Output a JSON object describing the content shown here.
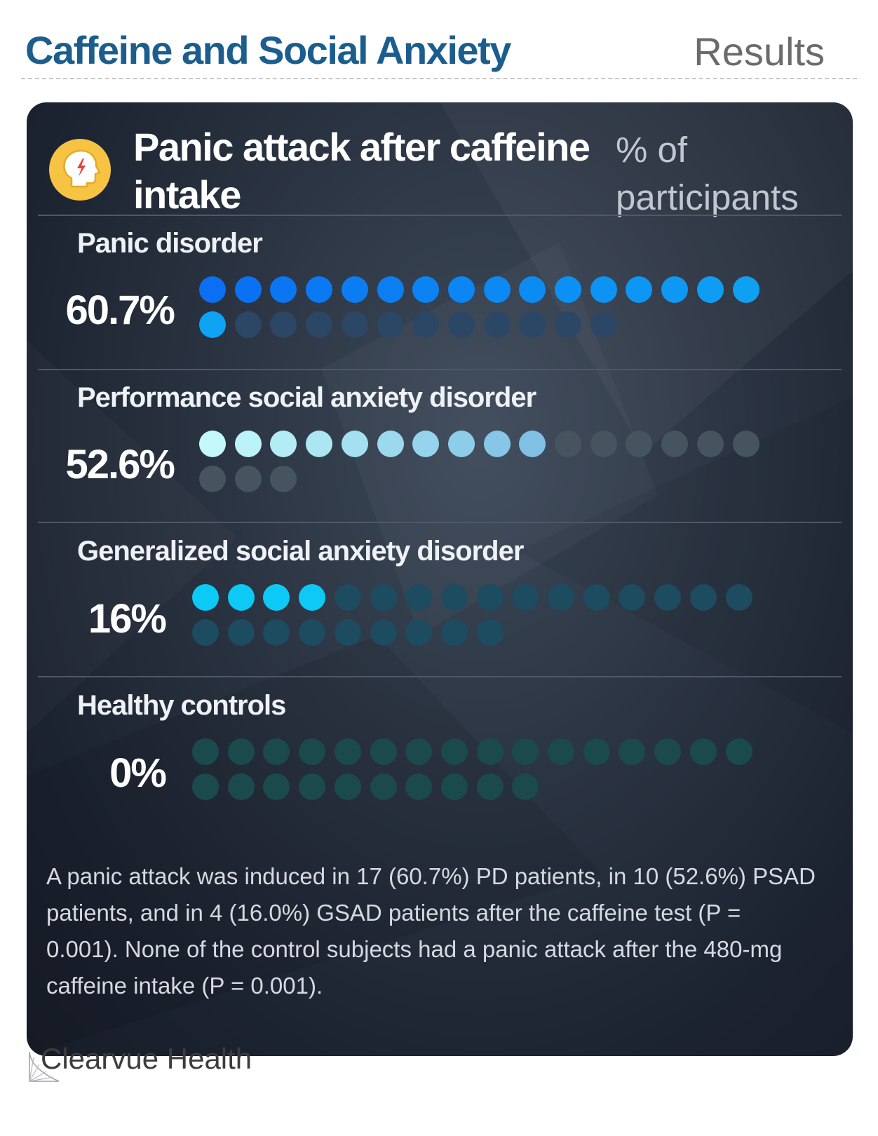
{
  "header": {
    "title": "Caffeine and Social Anxiety",
    "section": "Results"
  },
  "card": {
    "title": "Panic attack after caffeine intake",
    "unit": "% of participants",
    "icon": "head-lightning-icon"
  },
  "chart_data": {
    "type": "pictogram",
    "title": "Panic attack after caffeine intake",
    "unit": "% of participants",
    "groups": [
      {
        "label": "Panic disorder",
        "value_label": "60.7%",
        "value": 60.7,
        "total": 28,
        "filled": 17
      },
      {
        "label": "Performance social anxiety disorder",
        "value_label": "52.6%",
        "value": 52.6,
        "total": 19,
        "filled": 10
      },
      {
        "label": "Generalized social anxiety disorder",
        "value_label": "16%",
        "value": 16,
        "total": 25,
        "filled": 4
      },
      {
        "label": "Healthy controls",
        "value_label": "0%",
        "value": 0,
        "total": 26,
        "filled": 0
      }
    ],
    "colors": {
      "panic_filled_start": "#0a6ff2",
      "panic_filled_end": "#0ea3f3",
      "panic_empty": "#2c4665",
      "psad_filled_start": "#c3f9fb",
      "psad_filled_end": "#7fc0e4",
      "psad_empty": "#45545f",
      "gsad_filled": "#0cc9f5",
      "gsad_empty": "#1d4b5f",
      "control_empty": "#1b4a4d"
    }
  },
  "footnote": "A panic attack was induced in 17 (60.7%) PD patients, in 10 (52.6%) PSAD patients, and in 4 (16.0%) GSAD patients after the caffeine test (P = 0.001). None of the control subjects had a panic attack after the 480-mg caffeine intake (P = 0.001).",
  "brand": {
    "name": "Clearvue Health",
    "logo": "clearvue-logo-icon"
  }
}
